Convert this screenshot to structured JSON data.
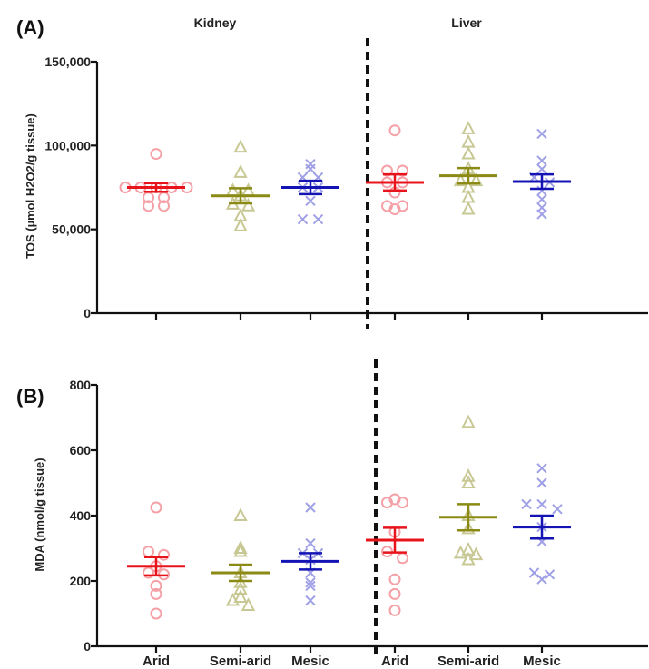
{
  "chart_data": [
    {
      "panel": "(A)",
      "type": "scatter",
      "ylabel": "TOS (µmol H2O2/g tissue)",
      "ylim": [
        0,
        150000
      ],
      "yticks": [
        0,
        50000,
        100000,
        150000
      ],
      "ytick_labels": [
        "0",
        "50,000",
        "100,000",
        "150,000"
      ],
      "group_titles": [
        "Kidney",
        "Liver"
      ],
      "categories": [
        "Arid",
        "Semi-arid",
        "Mesic"
      ],
      "series": [
        {
          "group": "Kidney",
          "category": "Arid",
          "marker": "circle",
          "mean": 75000,
          "sem": 2600,
          "values": [
            95000,
            75000,
            75000,
            75000,
            75000,
            75000,
            69000,
            69000,
            64000,
            64000
          ]
        },
        {
          "group": "Kidney",
          "category": "Semi-arid",
          "marker": "triangle",
          "mean": 70000,
          "sem": 4500,
          "values": [
            99000,
            84000,
            73000,
            73000,
            70000,
            65000,
            64000,
            58000,
            52000
          ]
        },
        {
          "group": "Kidney",
          "category": "Mesic",
          "marker": "x",
          "mean": 75000,
          "sem": 4000,
          "values": [
            89000,
            86000,
            81000,
            81000,
            75000,
            75000,
            67000,
            56000,
            56000
          ]
        },
        {
          "group": "Liver",
          "category": "Arid",
          "marker": "circle",
          "mean": 78000,
          "sem": 4800,
          "values": [
            109000,
            85000,
            85000,
            78000,
            78000,
            72000,
            64000,
            64000,
            62000
          ]
        },
        {
          "group": "Liver",
          "category": "Semi-arid",
          "marker": "triangle",
          "mean": 82000,
          "sem": 4600,
          "values": [
            110000,
            102000,
            95000,
            86000,
            79000,
            79000,
            75000,
            69000,
            62000
          ]
        },
        {
          "group": "Liver",
          "category": "Mesic",
          "marker": "x",
          "mean": 78500,
          "sem": 4300,
          "values": [
            107000,
            91000,
            86000,
            81000,
            78000,
            73000,
            68000,
            63000,
            59000
          ]
        }
      ]
    },
    {
      "panel": "(B)",
      "type": "scatter",
      "ylabel": "MDA (nmol/g tissue)",
      "ylim": [
        0,
        800
      ],
      "yticks": [
        0,
        200,
        400,
        600,
        800
      ],
      "ytick_labels": [
        "0",
        "200",
        "400",
        "600",
        "800"
      ],
      "categories": [
        "Arid",
        "Semi-arid",
        "Mesic"
      ],
      "xtick_labels": [
        "Arid",
        "Semi-arid",
        "Mesic",
        "Arid",
        "Semi-arid",
        "Mesic"
      ],
      "series": [
        {
          "group": "Kidney",
          "category": "Arid",
          "marker": "circle",
          "mean": 245,
          "sem": 28,
          "values": [
            425,
            290,
            280,
            245,
            225,
            220,
            185,
            160,
            100
          ]
        },
        {
          "group": "Kidney",
          "category": "Semi-arid",
          "marker": "triangle",
          "mean": 225,
          "sem": 25,
          "values": [
            400,
            300,
            290,
            225,
            195,
            175,
            150,
            140,
            125
          ]
        },
        {
          "group": "Kidney",
          "category": "Mesic",
          "marker": "x",
          "mean": 260,
          "sem": 25,
          "values": [
            425,
            315,
            285,
            285,
            265,
            225,
            195,
            185,
            140
          ]
        },
        {
          "group": "Liver",
          "category": "Arid",
          "marker": "circle",
          "mean": 325,
          "sem": 38,
          "values": [
            450,
            440,
            440,
            350,
            290,
            270,
            205,
            160,
            110
          ]
        },
        {
          "group": "Liver",
          "category": "Semi-arid",
          "marker": "triangle",
          "mean": 395,
          "sem": 40,
          "values": [
            685,
            520,
            500,
            400,
            360,
            295,
            285,
            280,
            265
          ]
        },
        {
          "group": "Liver",
          "category": "Mesic",
          "marker": "x",
          "mean": 365,
          "sem": 35,
          "values": [
            545,
            500,
            435,
            435,
            420,
            365,
            320,
            225,
            220,
            205
          ]
        }
      ]
    }
  ],
  "colors": {
    "Arid": {
      "mean": "#e8141c",
      "marker": "#f5a0a6"
    },
    "Semi-arid": {
      "mean": "#8a8a14",
      "marker": "#c8c895"
    },
    "Mesic": {
      "mean": "#1414b4",
      "marker": "#a0a0e6"
    }
  }
}
